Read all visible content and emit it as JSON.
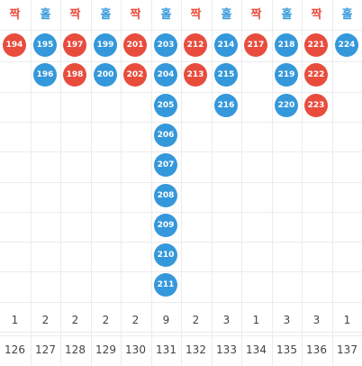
{
  "colors": {
    "even": "#e84c3d",
    "odd": "#3498db",
    "text": "#444444",
    "grid": "#ececec"
  },
  "columns": [
    {
      "label": "짝",
      "parity": "even",
      "balls": [
        "194"
      ],
      "count": "1",
      "round": "126"
    },
    {
      "label": "홀",
      "parity": "odd",
      "balls": [
        "195",
        "196"
      ],
      "count": "2",
      "round": "127"
    },
    {
      "label": "짝",
      "parity": "even",
      "balls": [
        "197",
        "198"
      ],
      "count": "2",
      "round": "128"
    },
    {
      "label": "홀",
      "parity": "odd",
      "balls": [
        "199",
        "200"
      ],
      "count": "2",
      "round": "129"
    },
    {
      "label": "짝",
      "parity": "even",
      "balls": [
        "201",
        "202"
      ],
      "count": "2",
      "round": "130"
    },
    {
      "label": "홀",
      "parity": "odd",
      "balls": [
        "203",
        "204",
        "205",
        "206",
        "207",
        "208",
        "209",
        "210",
        "211"
      ],
      "count": "9",
      "round": "131"
    },
    {
      "label": "짝",
      "parity": "even",
      "balls": [
        "212",
        "213"
      ],
      "count": "2",
      "round": "132"
    },
    {
      "label": "홀",
      "parity": "odd",
      "balls": [
        "214",
        "215",
        "216"
      ],
      "count": "3",
      "round": "133"
    },
    {
      "label": "짝",
      "parity": "even",
      "balls": [
        "217"
      ],
      "count": "1",
      "round": "134"
    },
    {
      "label": "홀",
      "parity": "odd",
      "balls": [
        "218",
        "219",
        "220"
      ],
      "count": "3",
      "round": "135"
    },
    {
      "label": "짝",
      "parity": "even",
      "balls": [
        "221",
        "222",
        "223"
      ],
      "count": "3",
      "round": "136"
    },
    {
      "label": "홀",
      "parity": "odd",
      "balls": [
        "224"
      ],
      "count": "1",
      "round": "137"
    }
  ]
}
